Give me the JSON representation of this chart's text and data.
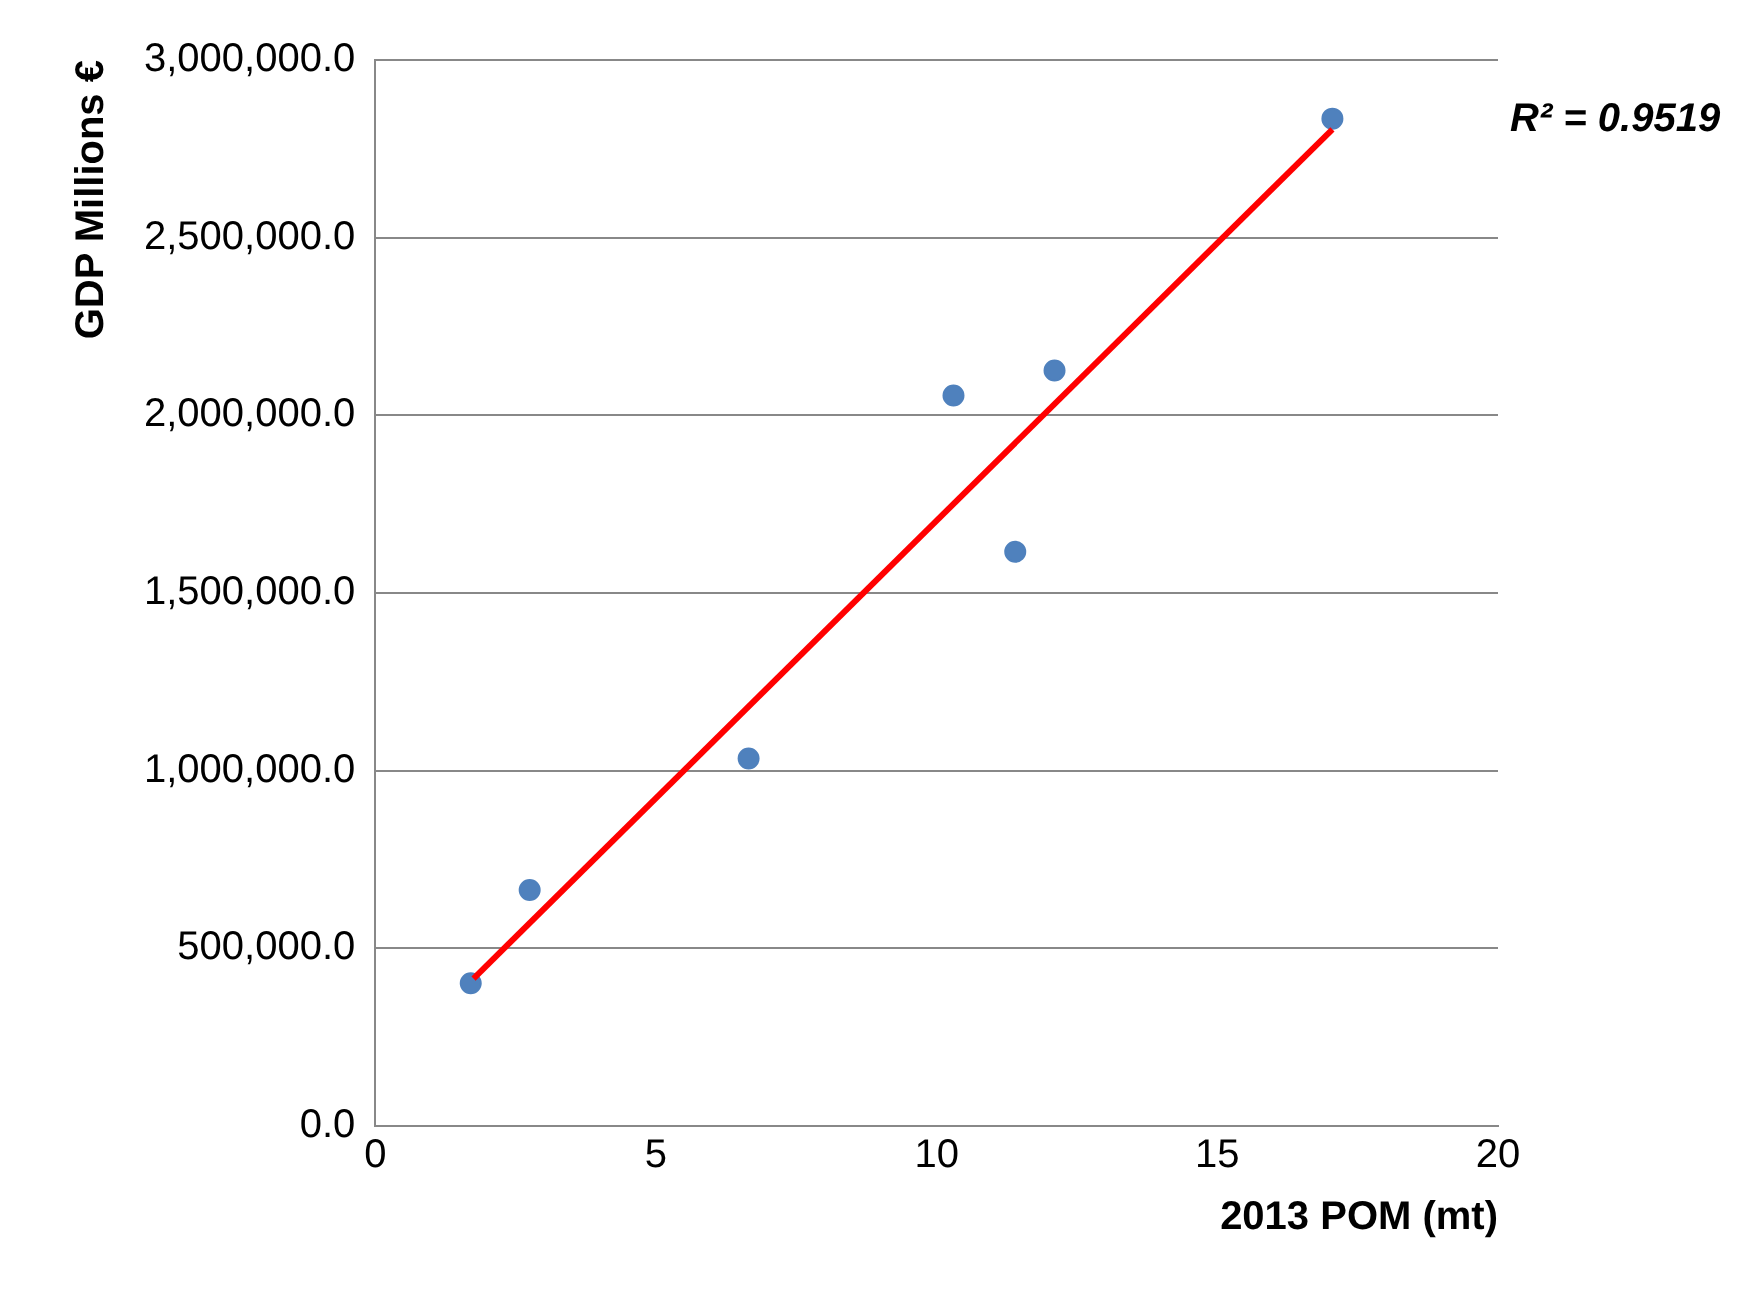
{
  "chart_data": {
    "type": "scatter",
    "xlabel": "2013 POM (mt)",
    "ylabel": "GDP Millions €",
    "series": [
      {
        "color": "#4f81bd",
        "x": [
          1.7,
          2.75,
          6.65,
          10.3,
          11.4,
          12.1,
          17.05
        ],
        "values": [
          402000,
          664000,
          1034000,
          2056000,
          1616000,
          2126000,
          2835000
        ]
      },
      {
        "type": "line",
        "marker": "none",
        "color": "#ff0000",
        "x": [
          1.75,
          17.05
        ],
        "values": [
          415000,
          2805000
        ]
      }
    ],
    "xlim": [
      0,
      20
    ],
    "xticks": [
      0,
      5,
      10,
      15,
      20
    ],
    "ylim": [
      0,
      3000000
    ],
    "yticks": [
      {
        "value": 0,
        "label": "0.0"
      },
      {
        "value": 500000,
        "label": "500,000.0"
      },
      {
        "value": 1000000,
        "label": "1,000,000.0"
      },
      {
        "value": 1500000,
        "label": "1,500,000.0"
      },
      {
        "value": 2000000,
        "label": "2,000,000.0"
      },
      {
        "value": 2500000,
        "label": "2,500,000.0"
      },
      {
        "value": 3000000,
        "label": "3,000,000.0"
      }
    ],
    "grid": "y",
    "legend": false,
    "marker": "circle",
    "annotations": [
      "R² = 0.9519"
    ]
  }
}
